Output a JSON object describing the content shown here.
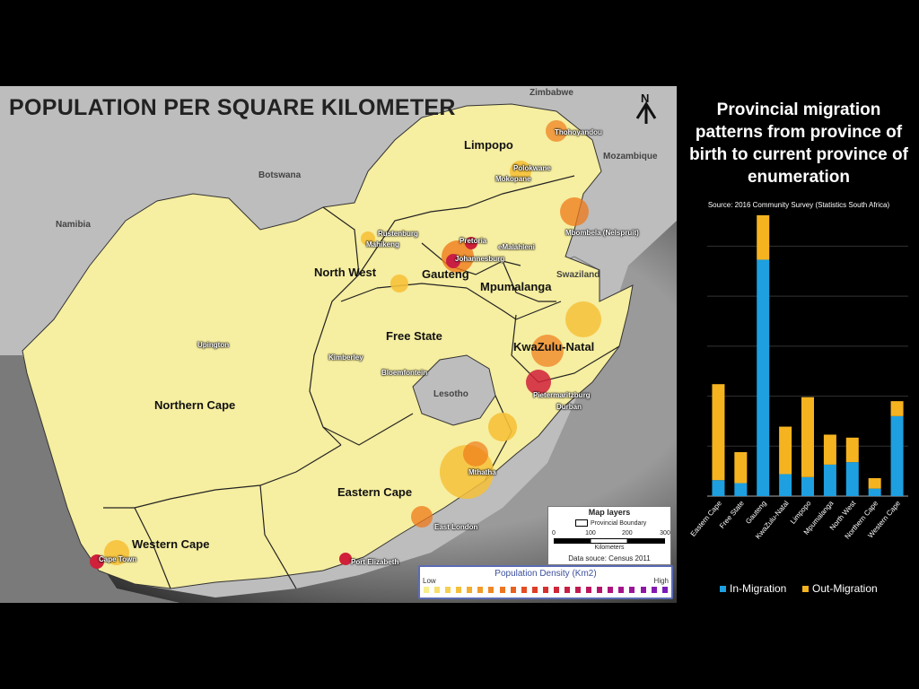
{
  "map": {
    "title": "POPULATION PER SQUARE KILOMETER",
    "north_label": "N",
    "countries": [
      "Zimbabwe",
      "Botswana",
      "Namibia",
      "Mozambique",
      "Swaziland",
      "Lesotho"
    ],
    "provinces": [
      "Limpopo",
      "North West",
      "Gauteng",
      "Mpumalanga",
      "Free State",
      "KwaZulu-Natal",
      "Northern Cape",
      "Eastern Cape",
      "Western Cape"
    ],
    "cities": [
      "Thohoyandou",
      "Polokwane",
      "Mokopane",
      "Rustenburg",
      "Mahikeng",
      "Pretoria",
      "eMalahleni",
      "Mbombela (Nelspruit)",
      "Johannesburg",
      "Upington",
      "Kimberley",
      "Bloemfontein",
      "Pietermaritzburg",
      "Durban",
      "Mthatha",
      "East London",
      "Port Elizabeth",
      "Cape Town"
    ],
    "colors": {
      "land": "#f6eea0",
      "ocean_light": "#8c8c8c",
      "ocean_dark": "#2a2a2a",
      "neighbour": "#bdbdbd",
      "dense": "#d0203a",
      "medium": "#ef7a1a",
      "light": "#f6c13a"
    }
  },
  "map_legend": {
    "title": "Map layers",
    "boundary_label": "Provincial Boundary",
    "scale_ticks": [
      "0",
      "100",
      "200",
      "300"
    ],
    "scale_units": "Kilometers",
    "source": "Data souce: Census 2011"
  },
  "density_legend": {
    "title": "Population Density (Km2)",
    "low_label": "Low",
    "high_label": "High",
    "colors": [
      "#f8ee8a",
      "#f6df6c",
      "#f5d04f",
      "#f4bf3a",
      "#f3ad2f",
      "#f19b29",
      "#ef8824",
      "#ec7520",
      "#e8611f",
      "#e34f22",
      "#dd3e27",
      "#d6312f",
      "#cf2638",
      "#c81e44",
      "#c11951",
      "#bb165f",
      "#b5146e",
      "#ae137d",
      "#a5138c",
      "#9b149a",
      "#9016a6",
      "#8418b1",
      "#7a1bb9"
    ]
  },
  "chart": {
    "title": "Provincial migration patterns from province of birth to current province of enumeration",
    "source": "Source: 2016 Community Survey (Statistics South Africa)",
    "legend": [
      {
        "label": "In-Migration",
        "color": "#1e9fe0"
      },
      {
        "label": "Out-Migration",
        "color": "#f5b320"
      }
    ]
  },
  "chart_data": {
    "type": "bar",
    "stacked": true,
    "categories": [
      "Eastern Cape",
      "Free State",
      "Gauteng",
      "KwaZulu-Natal",
      "Limpopo",
      "Mpumalanga",
      "North West",
      "Northern Cape",
      "Western Cape"
    ],
    "series": [
      {
        "name": "In-Migration",
        "color": "#1e9fe0",
        "values": [
          0.32,
          0.26,
          4.73,
          0.44,
          0.38,
          0.63,
          0.68,
          0.15,
          1.6
        ]
      },
      {
        "name": "Out-Migration",
        "color": "#f5b320",
        "values": [
          1.92,
          0.62,
          0.89,
          0.95,
          1.6,
          0.6,
          0.49,
          0.21,
          0.3
        ]
      }
    ],
    "ylim": [
      0,
      5.6
    ],
    "grid": true,
    "legend_position": "bottom"
  }
}
